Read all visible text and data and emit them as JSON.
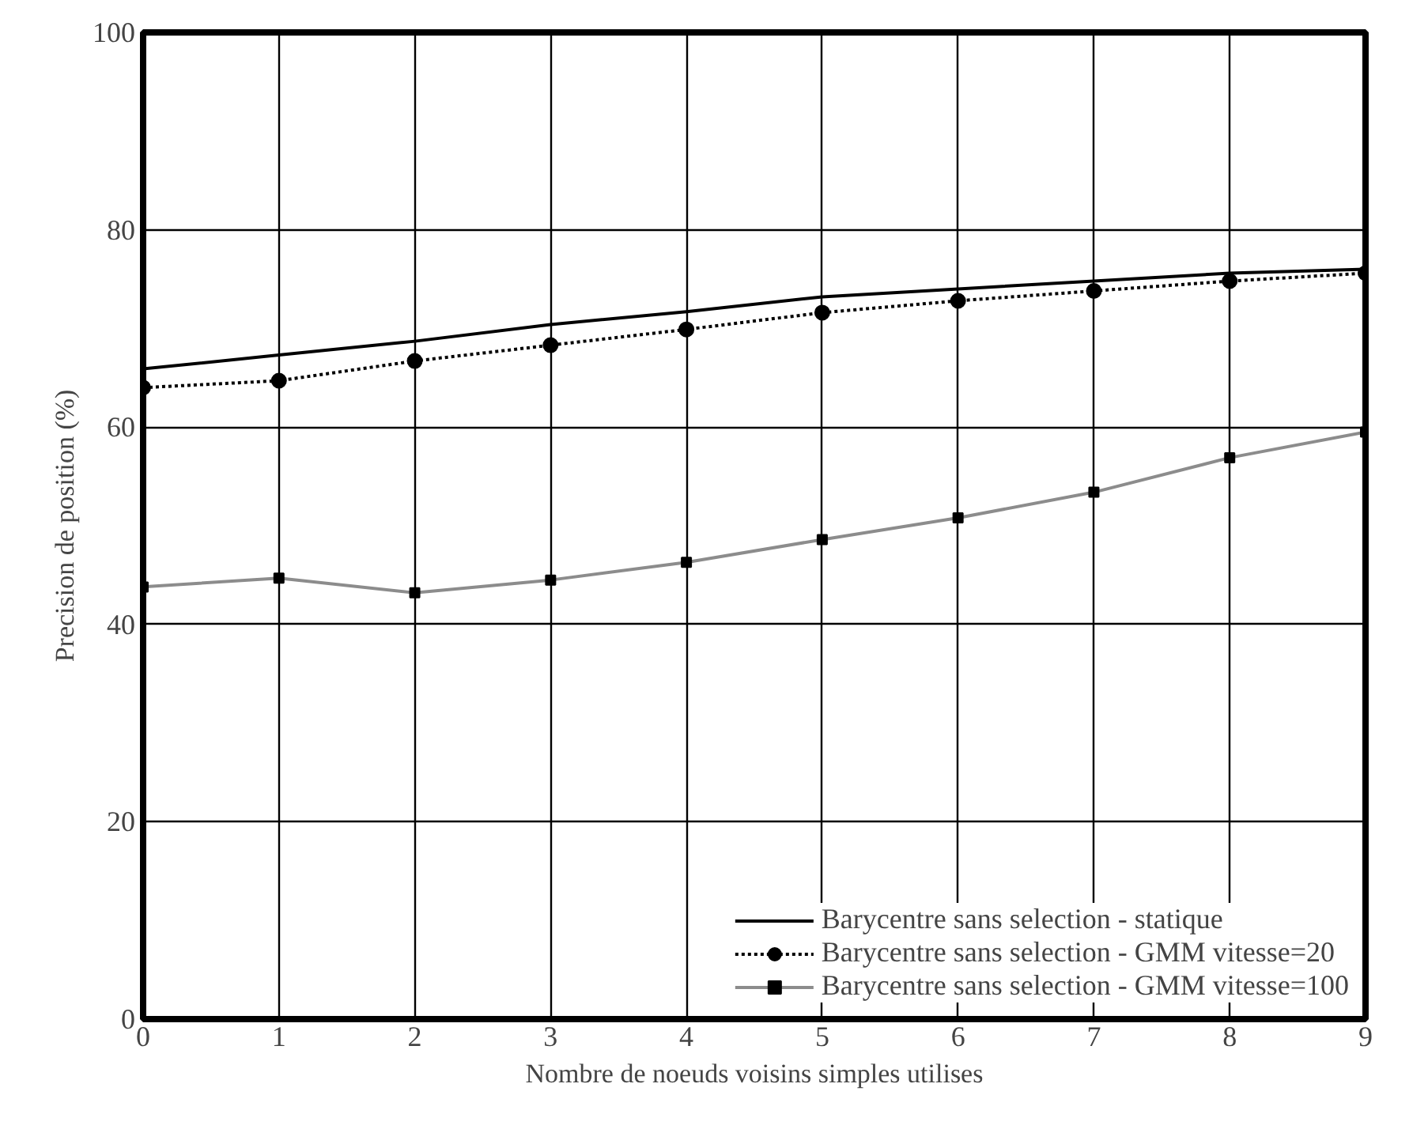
{
  "chart_data": {
    "type": "line",
    "xlabel": "Nombre de noeuds voisins simples utilises",
    "ylabel": "Precision de position (%)",
    "x": [
      0,
      1,
      2,
      3,
      4,
      5,
      6,
      7,
      8,
      9
    ],
    "series": [
      {
        "name": "Barycentre sans selection - statique",
        "color": "#000000",
        "marker": "none",
        "line_style": "solid",
        "values": [
          65.9,
          67.3,
          68.7,
          70.4,
          71.7,
          73.2,
          74.0,
          74.8,
          75.6,
          76.0
        ]
      },
      {
        "name": "Barycentre sans selection - GMM vitesse=20",
        "color": "#000000",
        "marker": "circle",
        "line_style": "dotted",
        "values": [
          64.0,
          64.7,
          66.7,
          68.3,
          69.9,
          71.6,
          72.8,
          73.8,
          74.8,
          75.6
        ]
      },
      {
        "name": "Barycentre sans selection - GMM vitesse=100",
        "color": "#8c8c8c",
        "marker": "square",
        "line_style": "solid",
        "values": [
          43.8,
          44.7,
          43.2,
          44.5,
          46.3,
          48.6,
          50.8,
          53.4,
          56.9,
          59.5
        ]
      }
    ],
    "xlim": [
      0,
      9
    ],
    "ylim": [
      0,
      100
    ],
    "xticks": [
      0,
      1,
      2,
      3,
      4,
      5,
      6,
      7,
      8,
      9
    ],
    "yticks": [
      0,
      20,
      40,
      60,
      80,
      100
    ],
    "grid": true,
    "legend": "bottom right"
  }
}
